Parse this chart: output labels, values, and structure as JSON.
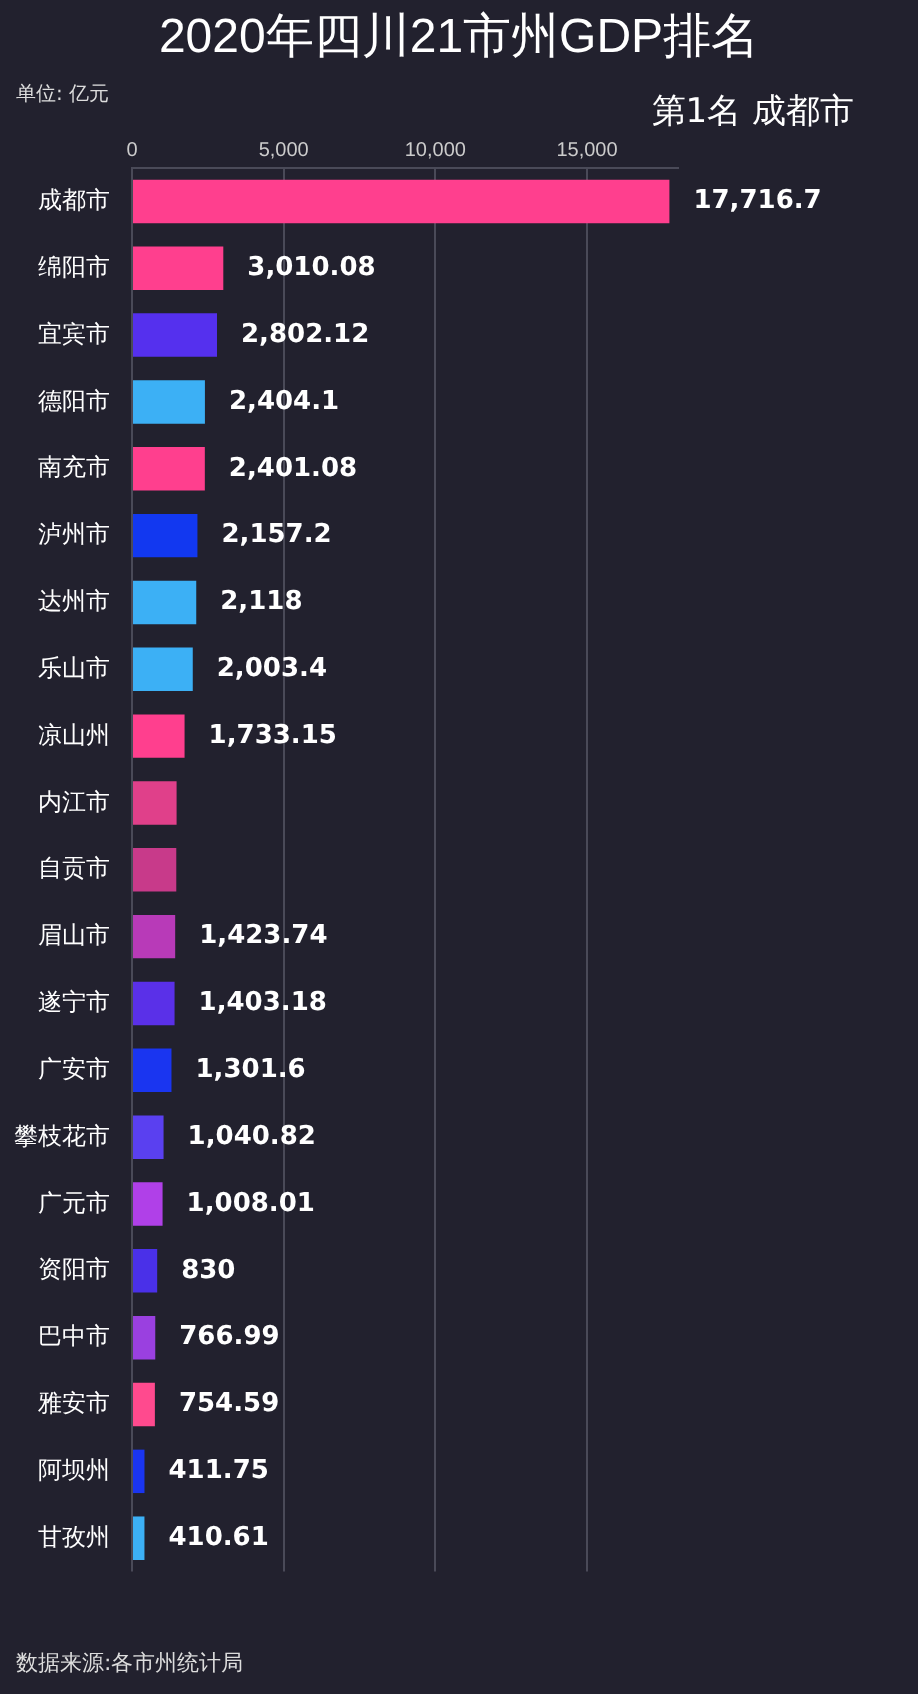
{
  "chart_data": {
    "type": "bar",
    "orientation": "horizontal",
    "title": "2020年四川21市州GDP排名",
    "annotations": [
      "单位: 亿元",
      "第1名 成都市",
      "数据来源:各市州统计局"
    ],
    "categories": [
      "成都市",
      "绵阳市",
      "宜宾市",
      "德阳市",
      "南充市",
      "泸州市",
      "达州市",
      "乐山市",
      "凉山州",
      "内江市",
      "自贡市",
      "眉山市",
      "遂宁市",
      "广安市",
      "攀枝花市",
      "广元市",
      "资阳市",
      "巴中市",
      "雅安市",
      "阿坝州",
      "甘孜州"
    ],
    "values": [
      17716.7,
      3010.08,
      2802.12,
      2404.1,
      2401.08,
      2157.2,
      2118,
      2003.4,
      1733.15,
      1470,
      1460,
      1423.74,
      1403.18,
      1301.6,
      1040.82,
      1008.01,
      830,
      766.99,
      754.59,
      411.75,
      410.61
    ],
    "value_labels": [
      "17,716.7",
      "3,010.08",
      "2,802.12",
      "2,404.1",
      "2,401.08",
      "2,157.2",
      "2,118",
      "2,003.4",
      "1,733.15",
      null,
      null,
      "1,423.74",
      "1,403.18",
      "1,301.6",
      "1,040.82",
      "1,008.01",
      "830",
      "766.99",
      "754.59",
      "411.75",
      "410.61"
    ],
    "colors": [
      "#ff3f8e",
      "#ff3f8e",
      "#5530ee",
      "#3cb0f5",
      "#ff3f8e",
      "#1238f0",
      "#3cb0f5",
      "#3cb0f5",
      "#ff3f8e",
      "#e0408a",
      "#c83a8a",
      "#b83ab8",
      "#5a30e8",
      "#1a35f0",
      "#5a40f0",
      "#b040e8",
      "#4a30e8",
      "#9a40e0",
      "#ff4a8e",
      "#1a35f0",
      "#3cb0f5"
    ],
    "xlim": [
      0,
      18000
    ],
    "xticks": [
      0,
      {
        "value": 5000,
        "label": "5,000"
      },
      {
        "value": 10000,
        "label": "10,000"
      },
      {
        "value": 15000,
        "label": "15,000"
      }
    ],
    "grid": "x",
    "legend": false
  }
}
